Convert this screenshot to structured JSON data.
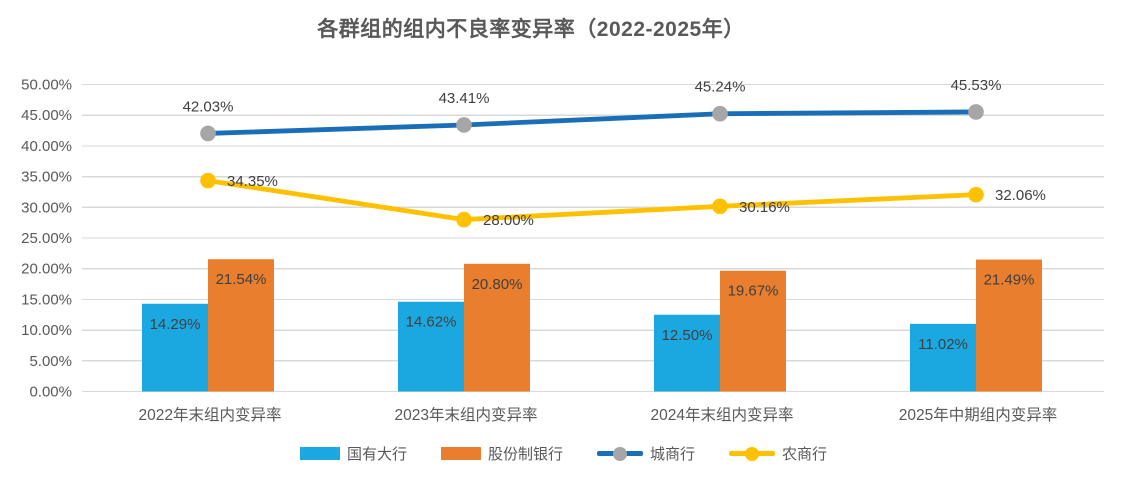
{
  "title": "各群组的组内不良率变异率（2022-2025年）",
  "colors": {
    "bar_blue": "#1BA8E0",
    "bar_orange": "#E87E2E",
    "line_blue": "#1A6EB8",
    "line_blue_marker": "#A6A6A6",
    "line_yellow": "#FFC000",
    "grid": "#D9D9D9",
    "axis_text": "#595959",
    "data_label_text": "#404040",
    "title_text": "#595959"
  },
  "chart_data": {
    "type": "combo-bar-line",
    "title": "各群组的组内不良率变异率（2022-2025年）",
    "categories": [
      "2022年末组内变异率",
      "2023年末组内变异率",
      "2024年末组内变异率",
      "2025年中期组内变异率"
    ],
    "series": [
      {
        "name": "国有大行",
        "type": "bar",
        "color": "#1BA8E0",
        "values": [
          14.29,
          14.62,
          12.5,
          11.02
        ],
        "label_position": "inside-top"
      },
      {
        "name": "股份制银行",
        "type": "bar",
        "color": "#E87E2E",
        "values": [
          21.54,
          20.8,
          19.67,
          21.49
        ],
        "label_position": "inside-top"
      },
      {
        "name": "城商行",
        "type": "line",
        "color": "#1A6EB8",
        "marker_color": "#A6A6A6",
        "values": [
          42.03,
          43.41,
          45.24,
          45.53
        ],
        "label_position": "above"
      },
      {
        "name": "农商行",
        "type": "line",
        "color": "#FFC000",
        "marker_color": "#FFC000",
        "values": [
          34.35,
          28.0,
          30.16,
          32.06
        ],
        "label_position": "right"
      }
    ],
    "ylim": [
      0,
      50
    ],
    "ytick_step": 5,
    "value_format": "0.00%",
    "grid": true,
    "legend_position": "bottom"
  }
}
